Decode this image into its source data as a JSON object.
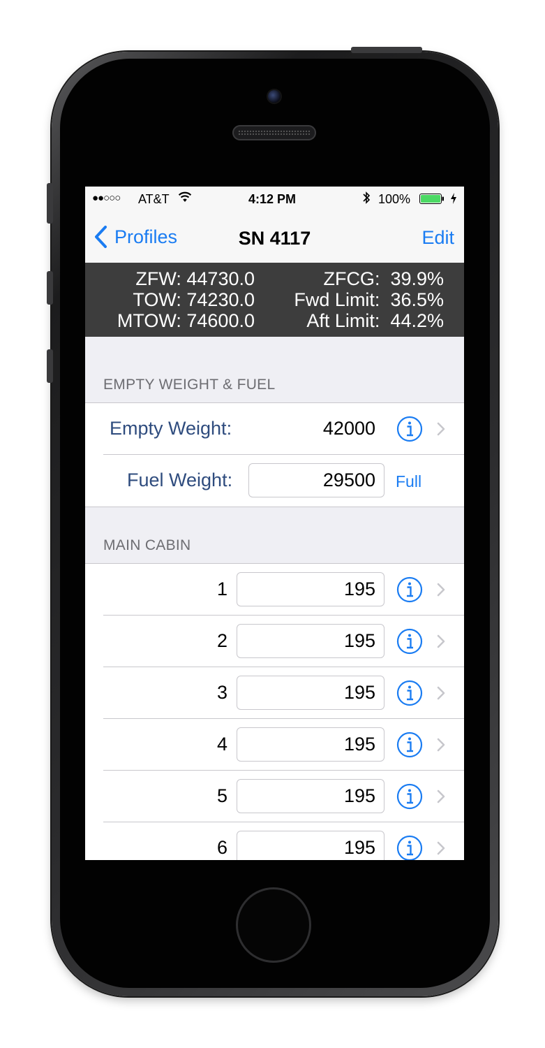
{
  "status_bar": {
    "signal": "●●○○○",
    "carrier": "AT&T",
    "time": "4:12 PM",
    "battery": "100%"
  },
  "nav": {
    "back_label": "Profiles",
    "title": "SN 4117",
    "edit_label": "Edit"
  },
  "summary": {
    "left": [
      "ZFW: 44730.0",
      "TOW: 74230.0",
      "MTOW: 74600.0"
    ],
    "right": [
      "ZFCG:  39.9%",
      "Fwd Limit:  36.5%",
      "Aft Limit:  44.2%"
    ]
  },
  "empty_weight_section": {
    "header": "EMPTY WEIGHT & FUEL",
    "empty_weight_label": "Empty Weight:",
    "empty_weight_value": "42000",
    "fuel_weight_label": "Fuel Weight:",
    "fuel_weight_value": "29500",
    "full_button": "Full"
  },
  "main_cabin": {
    "header": "MAIN CABIN",
    "seats": [
      {
        "number": "1",
        "weight": "195"
      },
      {
        "number": "2",
        "weight": "195"
      },
      {
        "number": "3",
        "weight": "195"
      },
      {
        "number": "4",
        "weight": "195"
      },
      {
        "number": "5",
        "weight": "195"
      },
      {
        "number": "6",
        "weight": "195"
      }
    ]
  },
  "colors": {
    "tint": "#1a7cf2",
    "label": "#2f4c7e",
    "summary_bg": "#3d3d3d",
    "grouped_bg": "#efeff4",
    "battery_fill": "#4cd964"
  },
  "icons": {
    "back": "chevron-left-icon",
    "info": "info-circle-icon",
    "disclosure": "chevron-right-icon",
    "wifi": "wifi-icon",
    "bluetooth": "bluetooth-icon",
    "battery": "battery-icon",
    "charging": "charging-bolt-icon"
  }
}
